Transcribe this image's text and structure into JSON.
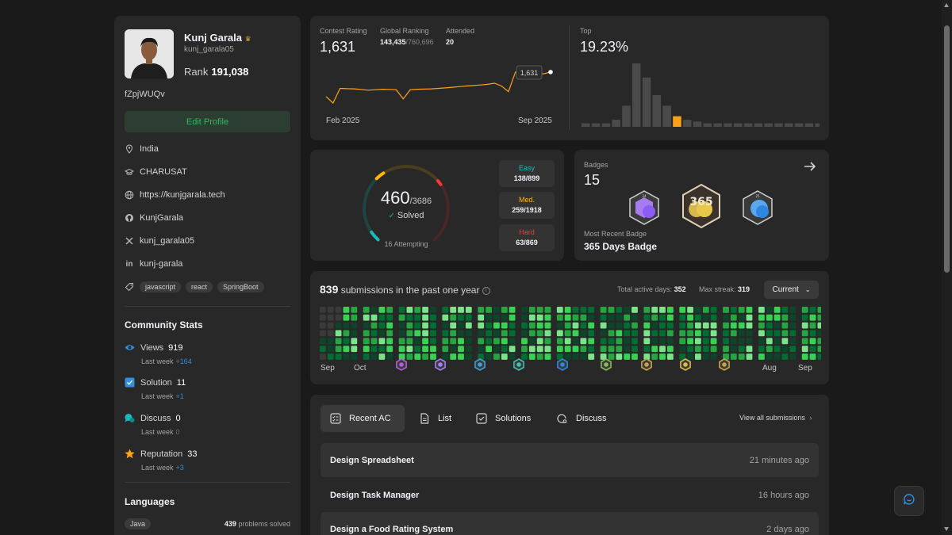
{
  "profile": {
    "name": "Kunj Garala",
    "handle": "kunj_garala05",
    "rank_label": "Rank",
    "rank_value": "191,038",
    "summary": "fZpjWUQv",
    "edit_label": "Edit Profile",
    "location": "India",
    "school": "CHARUSAT",
    "website": "https://kunjgarala.tech",
    "github": "KunjGarala",
    "twitter": "kunj_garala05",
    "linkedin": "kunj-garala",
    "tags": [
      "javascript",
      "react",
      "SpringBoot"
    ]
  },
  "community": {
    "title": "Community Stats",
    "last_week_label": "Last week",
    "views_label": "Views",
    "views_value": "919",
    "views_delta": "+164",
    "solution_label": "Solution",
    "solution_value": "11",
    "solution_delta": "+1",
    "discuss_label": "Discuss",
    "discuss_value": "0",
    "discuss_delta": "0",
    "reputation_label": "Reputation",
    "reputation_value": "33",
    "reputation_delta": "+3"
  },
  "languages": {
    "title": "Languages",
    "items": [
      {
        "name": "Java",
        "count": "439",
        "suffix": "problems solved"
      }
    ]
  },
  "contest": {
    "rating_label": "Contest Rating",
    "rating_value": "1,631",
    "global_label": "Global Ranking",
    "global_value": "143,435",
    "global_total": "/760,696",
    "attended_label": "Attended",
    "attended_value": "20",
    "tooltip": "1,631",
    "x_start": "Feb 2025",
    "x_end": "Sep 2025",
    "rating_series": [
      1480,
      1440,
      1530,
      1528,
      1527,
      1524,
      1519,
      1522,
      1525,
      1524,
      1522,
      1465,
      1522,
      1525,
      1526,
      1527,
      1530,
      1533,
      1537,
      1541,
      1545,
      1548,
      1551,
      1555,
      1562,
      1545,
      1510,
      1632,
      1618,
      1620,
      1622,
      1620,
      1631
    ],
    "top_label": "Top",
    "top_value": "19.23%",
    "histogram": [
      1,
      1,
      1,
      2,
      6,
      18,
      14,
      9,
      6,
      3,
      2,
      1.5,
      1,
      1,
      1,
      1,
      1,
      1,
      1,
      1,
      1,
      1,
      1,
      1
    ],
    "highlight_index": 9
  },
  "solved": {
    "count": "460",
    "total": "/3686",
    "label": "Solved",
    "attempting": "16 Attempting",
    "easy_label": "Easy",
    "easy_value": "138/899",
    "easy_fraction": 0.1535,
    "medium_label": "Med.",
    "medium_value": "259/1918",
    "medium_fraction": 0.135,
    "hard_label": "Hard",
    "hard_value": "63/869",
    "hard_fraction": 0.0725
  },
  "badges": {
    "label": "Badges",
    "count": "15",
    "recent_label": "Most Recent Badge",
    "recent_name": "365 Days Badge",
    "icons": [
      "badge-2024-50-icon",
      "badge-365-days-icon",
      "badge-2025-100-icon"
    ]
  },
  "heatmap": {
    "count": "839",
    "suffix": "submissions in the past one year",
    "active_label": "Total active days:",
    "active_value": "352",
    "streak_label": "Max streak:",
    "streak_value": "319",
    "dropdown": "Current",
    "months": [
      "Sep",
      "Oct",
      "",
      "",
      "",
      "",
      "",
      "",
      "",
      "",
      "Aug",
      "Sep"
    ]
  },
  "submissions": {
    "tabs": [
      "Recent AC",
      "List",
      "Solutions",
      "Discuss"
    ],
    "view_all": "View all submissions",
    "items": [
      {
        "title": "Design Spreadsheet",
        "time": "21 minutes ago"
      },
      {
        "title": "Design Task Manager",
        "time": "16 hours ago"
      },
      {
        "title": "Design a Food Rating System",
        "time": "2 days ago"
      }
    ]
  },
  "colors": {
    "accent_green": "#2cbb5d",
    "easy": "#1cbaba",
    "medium": "#ffb800",
    "hard": "#f63737",
    "rating_line": "#ffa116"
  }
}
